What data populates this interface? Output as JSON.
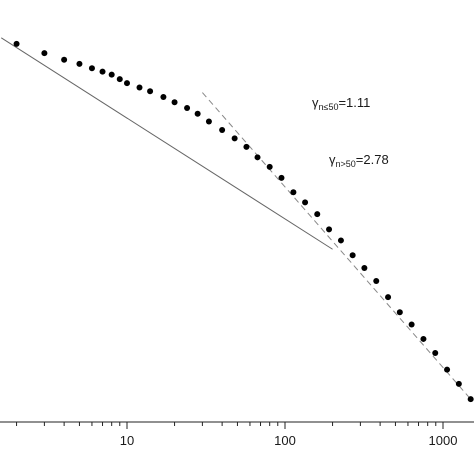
{
  "chart_data": {
    "type": "scatter",
    "title": "",
    "xlabel": "",
    "ylabel": "",
    "x_scale": "log",
    "y_scale": "log",
    "xlim": [
      1.6,
      1550
    ],
    "grid": false,
    "legend": "none",
    "x_ticks": [
      {
        "value": 10,
        "label": "10"
      },
      {
        "value": 100,
        "label": "100"
      },
      {
        "value": 1000,
        "label": "1000"
      }
    ],
    "series": [
      {
        "marker": "dot",
        "color": "#000000",
        "x": [
          2,
          3,
          4,
          5,
          6,
          7,
          8,
          9,
          10,
          12,
          14,
          17,
          20,
          24,
          28,
          33,
          40,
          48,
          57,
          67,
          80,
          95,
          113,
          134,
          160,
          190,
          226,
          268,
          318,
          378,
          449,
          533,
          633,
          752,
          893,
          1061,
          1260,
          1497
        ],
        "y": [
          0.88,
          0.77,
          0.7,
          0.66,
          0.62,
          0.59,
          0.565,
          0.53,
          0.5,
          0.47,
          0.445,
          0.41,
          0.38,
          0.35,
          0.322,
          0.288,
          0.255,
          0.226,
          0.2,
          0.172,
          0.15,
          0.128,
          0.104,
          0.09,
          0.076,
          0.061,
          0.052,
          0.042,
          0.035,
          0.029,
          0.023,
          0.0185,
          0.0155,
          0.0126,
          0.0103,
          0.0081,
          0.0066,
          0.0053
        ]
      }
    ],
    "fit_lines": [
      {
        "style": "solid",
        "color": "#666666",
        "x": [
          1.6,
          200
        ],
        "y": [
          0.96,
          0.0458
        ]
      },
      {
        "style": "dashed",
        "color": "#888888",
        "x": [
          30,
          1497
        ],
        "y": [
          0.437,
          0.0053
        ]
      }
    ],
    "annotations": [
      {
        "gamma": "γ",
        "subscript": "n≤50",
        "value": "=1.11"
      },
      {
        "gamma": "γ",
        "subscript": "n>50",
        "value": "=2.78"
      }
    ]
  }
}
